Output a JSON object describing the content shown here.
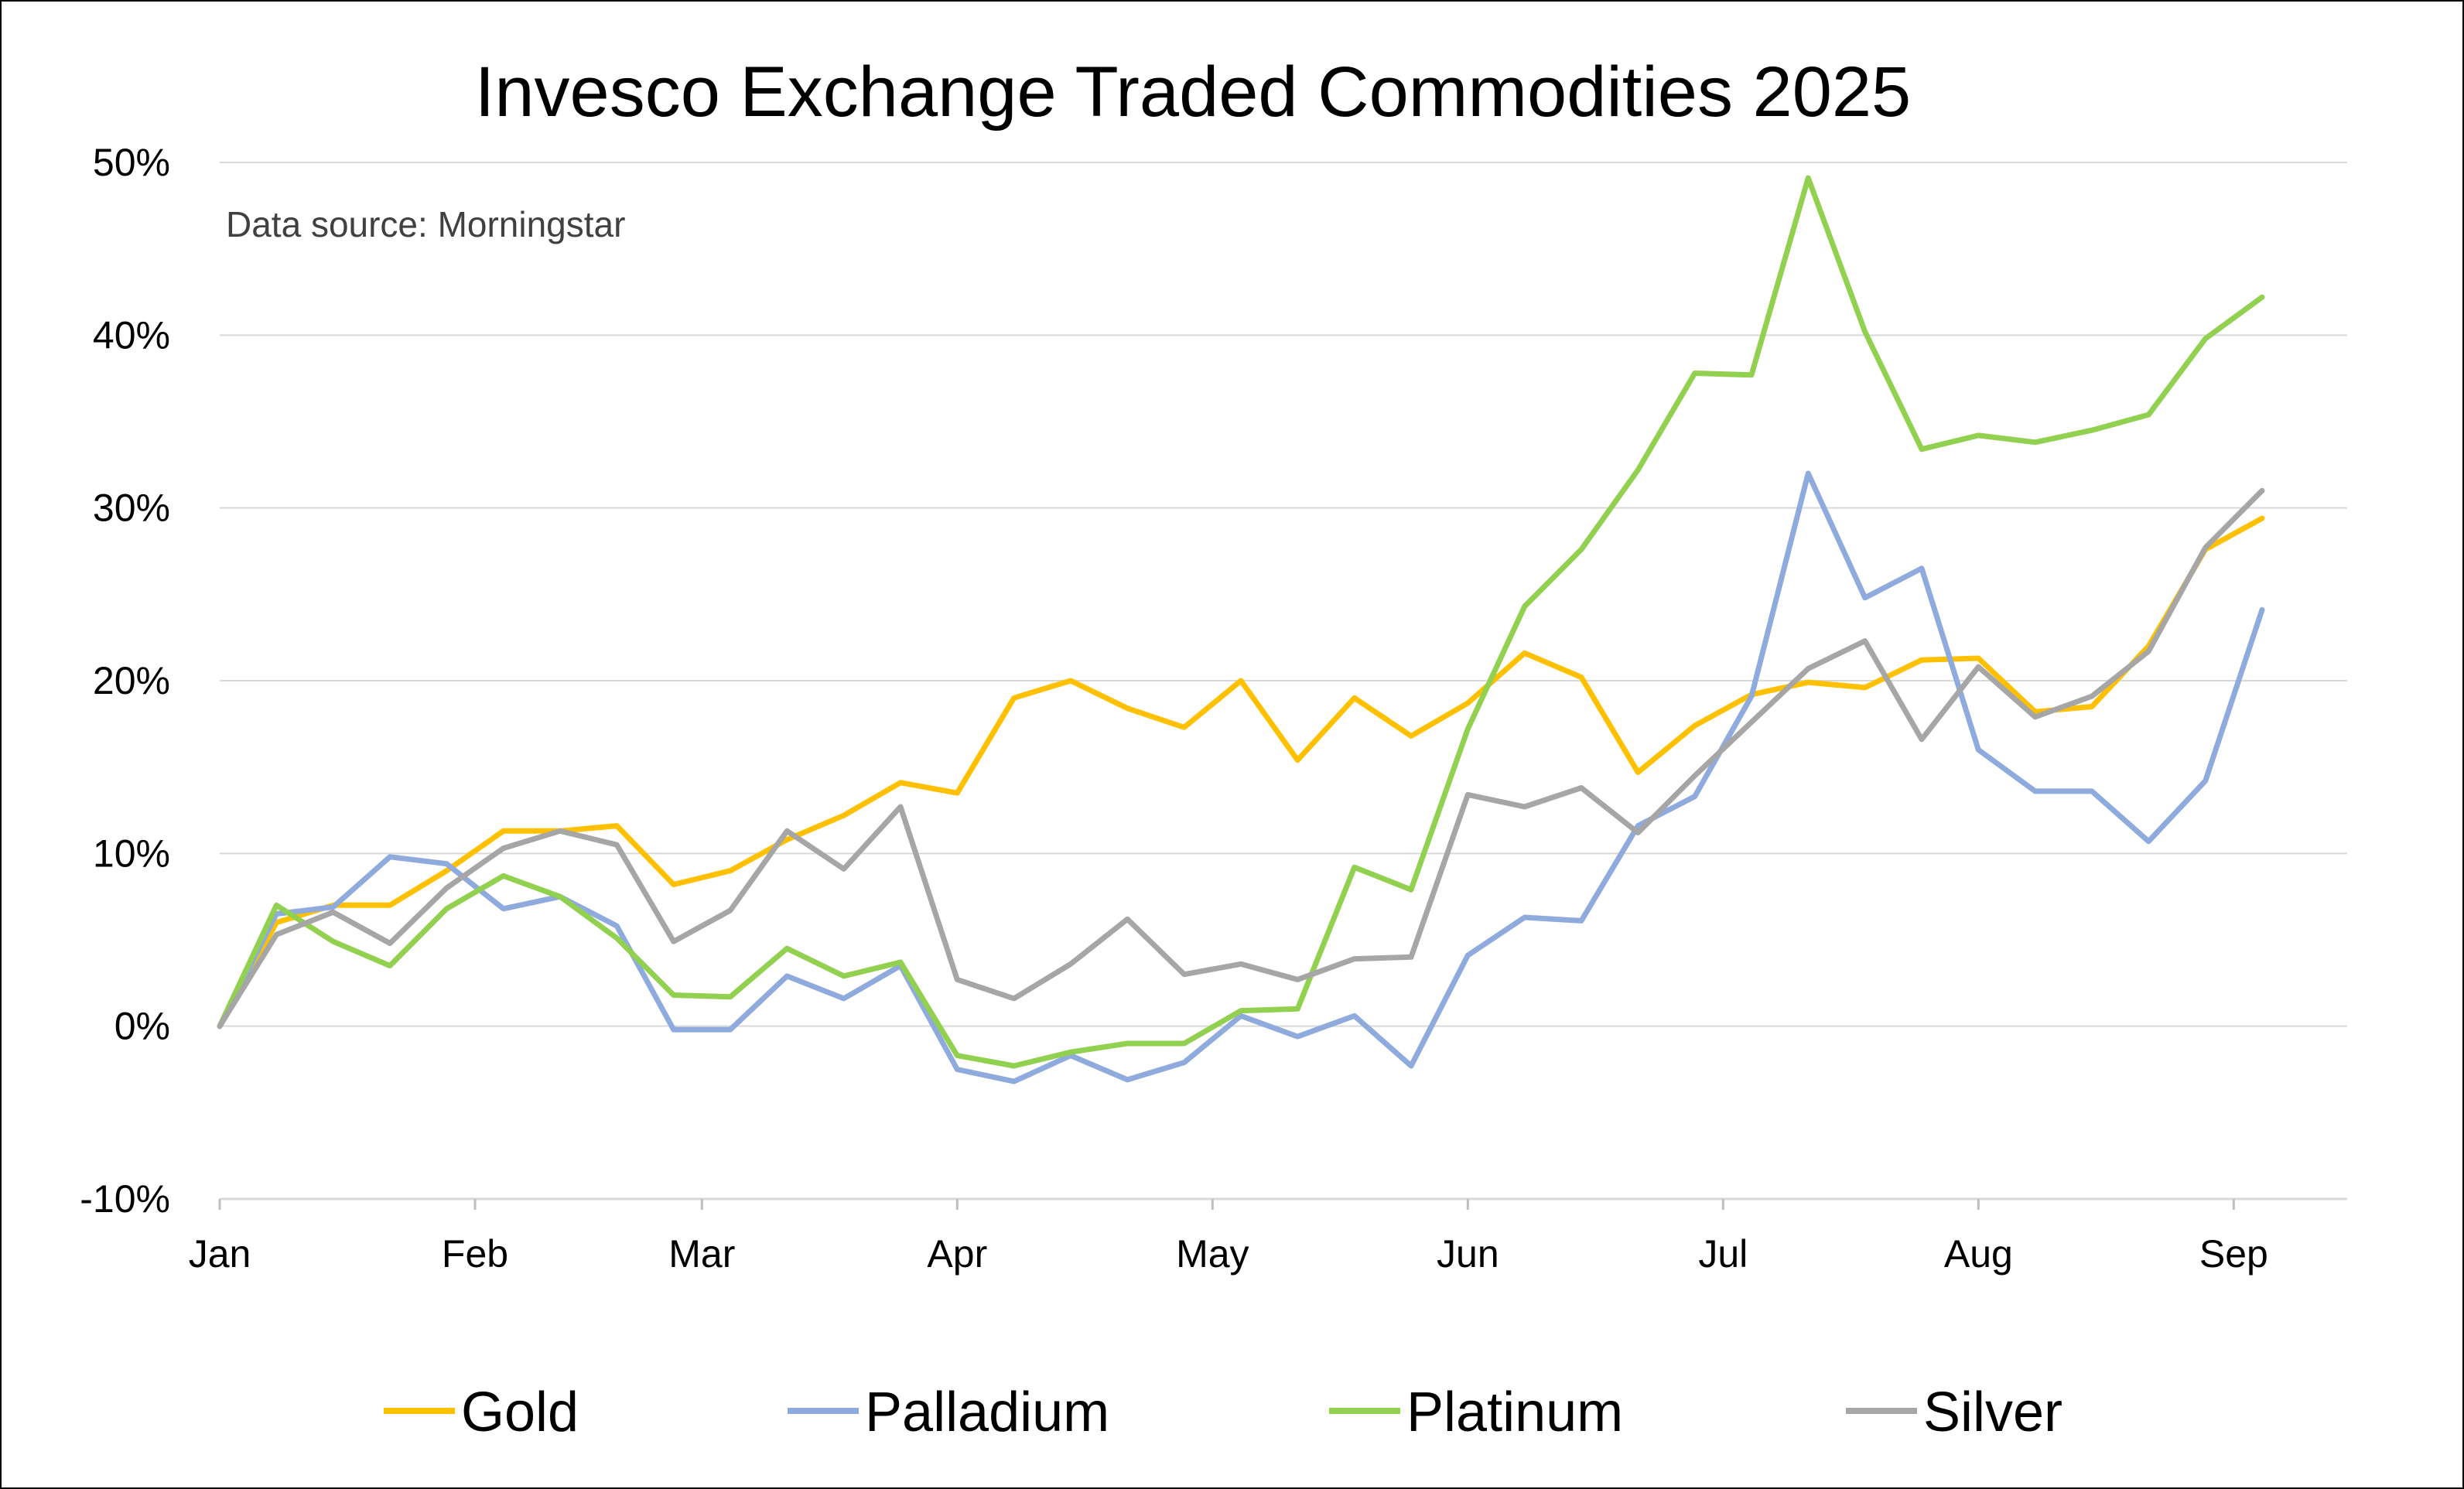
{
  "chart_data": {
    "type": "line",
    "title": "Invesco Exchange Traded Commodities 2025",
    "annotation": "Data source: Morningstar",
    "xlabel": "",
    "ylabel": "",
    "x_tick_labels": [
      "Jan",
      "Feb",
      "Mar",
      "Apr",
      "May",
      "Jun",
      "Jul",
      "Aug",
      "Sep"
    ],
    "y_tick_labels": [
      "-10%",
      "0%",
      "10%",
      "20%",
      "30%",
      "40%",
      "50%"
    ],
    "ylim": [
      -10,
      50
    ],
    "y_unit": "%",
    "grid": "horizontal",
    "legend_position": "bottom",
    "x_index_ticks": [
      0,
      4.5,
      8.5,
      13,
      17.5,
      22,
      26.5,
      31,
      35.5
    ],
    "x_index_max": 37.5,
    "series": [
      {
        "name": "Gold",
        "color": "#FFC000",
        "values": [
          0,
          6,
          7,
          7,
          9,
          11.3,
          11.3,
          11.6,
          8.2,
          9,
          10.8,
          12.2,
          14.1,
          13.5,
          19,
          20,
          18.4,
          17.3,
          20,
          15.4,
          19,
          16.8,
          18.7,
          21.6,
          20.2,
          14.7,
          17.4,
          19.2,
          19.9,
          19.6,
          21.2,
          21.3,
          18.2,
          18.5,
          22,
          27.6,
          29.4
        ]
      },
      {
        "name": "Palladium",
        "color": "#8FAADC",
        "values": [
          0,
          6.5,
          6.9,
          9.8,
          9.4,
          6.8,
          7.5,
          5.8,
          -0.2,
          -0.2,
          2.9,
          1.6,
          3.5,
          -2.5,
          -3.2,
          -1.7,
          -3.1,
          -2.1,
          0.6,
          -0.6,
          0.6,
          -2.3,
          4.1,
          6.3,
          6.1,
          11.6,
          13.3,
          19.1,
          32,
          24.8,
          26.5,
          16,
          13.6,
          13.6,
          10.7,
          14.2,
          24.1
        ]
      },
      {
        "name": "Platinum",
        "color": "#92D050",
        "values": [
          0,
          7,
          4.9,
          3.5,
          6.8,
          8.7,
          7.5,
          5.1,
          1.8,
          1.7,
          4.5,
          2.9,
          3.7,
          -1.7,
          -2.3,
          -1.5,
          -1,
          -1,
          0.9,
          1,
          9.2,
          7.9,
          17.2,
          24.3,
          27.6,
          32.2,
          37.8,
          37.7,
          49.1,
          40.2,
          33.4,
          34.2,
          33.8,
          34.5,
          35.4,
          39.8,
          42.2
        ]
      },
      {
        "name": "Silver",
        "color": "#A6A6A6",
        "values": [
          0,
          5.3,
          6.6,
          4.8,
          8,
          10.3,
          11.3,
          10.5,
          4.9,
          6.7,
          11.3,
          9.1,
          12.7,
          2.7,
          1.6,
          3.6,
          6.2,
          3,
          3.6,
          2.7,
          3.9,
          4,
          13.4,
          12.7,
          13.8,
          11.2,
          14.5,
          17.6,
          20.7,
          22.3,
          16.6,
          20.8,
          17.9,
          19.1,
          21.7,
          27.7,
          31
        ]
      }
    ]
  }
}
